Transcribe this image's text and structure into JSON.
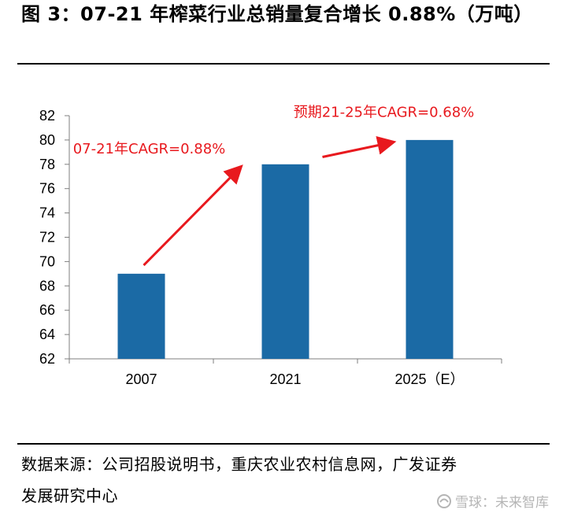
{
  "header": {
    "title": "图 3：07-21 年榨菜行业总销量复合增长 0.88%（万吨）"
  },
  "chart_data": {
    "type": "bar",
    "title": "图 3：07-21 年榨菜行业总销量复合增长 0.88%（万吨）",
    "unit": "万吨",
    "categories": [
      "2007",
      "2021",
      "2025（E）"
    ],
    "values": [
      69,
      78,
      80
    ],
    "ylim": [
      62,
      82
    ],
    "yticks": [
      62,
      64,
      66,
      68,
      70,
      72,
      74,
      76,
      78,
      80,
      82
    ],
    "ytick_labels": [
      "62",
      "64",
      "66",
      "68",
      "70",
      "72",
      "74",
      "76",
      "78",
      "80",
      "82"
    ],
    "xlabel": "",
    "ylabel": "",
    "grid": false,
    "legend": "none",
    "bar_color": "#1b6aa5",
    "annotations": [
      {
        "text": "07-21年CAGR=0.88%",
        "from": "2007",
        "to": "2021",
        "color": "#e8191e"
      },
      {
        "text": "预期21-25年CAGR=0.68%",
        "from": "2021",
        "to": "2025（E）",
        "color": "#e8191e"
      }
    ]
  },
  "footer": {
    "source_line1": "数据来源：公司招股说明书，重庆农业农村信息网，广发证券",
    "source_line2": "发展研究中心",
    "watermark": "雪球：未来智库"
  }
}
